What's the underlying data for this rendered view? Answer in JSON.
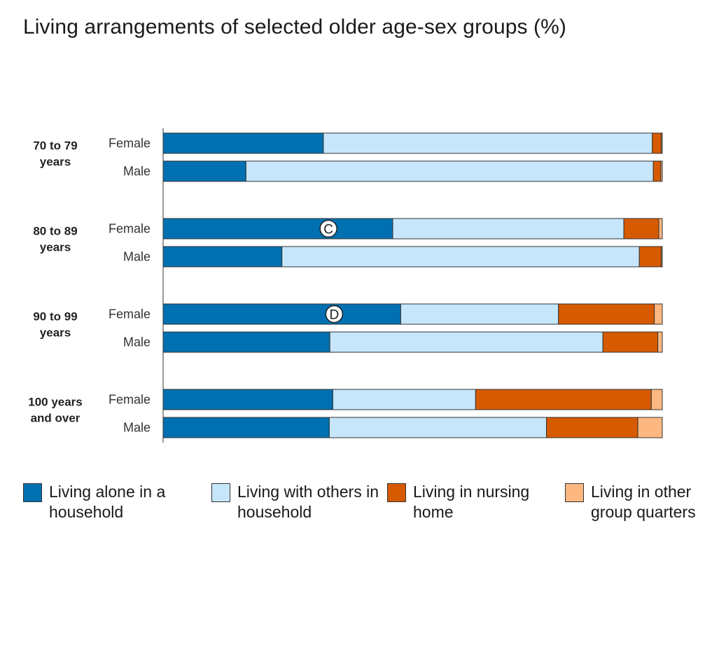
{
  "title": "Living arrangements of selected older age-sex groups (%)",
  "colors": {
    "living_alone": "#0070b0",
    "living_with_others": "#c6e6fb",
    "nursing_home": "#d65a00",
    "other_group_quarters": "#fdb882"
  },
  "legend": [
    {
      "label": "Living alone in a household",
      "color_key": "living_alone"
    },
    {
      "label": "Living with others in household",
      "color_key": "living_with_others"
    },
    {
      "label": "Living in nursing home",
      "color_key": "nursing_home"
    },
    {
      "label": "Living in other group quarters",
      "color_key": "other_group_quarters"
    }
  ],
  "chart_data": {
    "type": "bar",
    "orientation": "horizontal",
    "stacked": true,
    "title": "Living arrangements of selected older age-sex groups (%)",
    "xlim": [
      0,
      100
    ],
    "grid": false,
    "legend_position": "bottom",
    "groups": [
      {
        "label": "70 to 79 years",
        "bars": [
          {
            "label": "Female",
            "values": [
              32.1,
              65.9,
              1.8,
              0.2
            ]
          },
          {
            "label": "Male",
            "values": [
              16.6,
              81.6,
              1.5,
              0.3
            ]
          }
        ]
      },
      {
        "label": "80 to 89 years",
        "bars": [
          {
            "label": "Female",
            "values": [
              46.0,
              46.3,
              7.0,
              0.7
            ],
            "annotation": "C"
          },
          {
            "label": "Male",
            "values": [
              23.8,
              71.6,
              4.4,
              0.2
            ]
          }
        ]
      },
      {
        "label": "90 to 99 years",
        "bars": [
          {
            "label": "Female",
            "values": [
              47.6,
              31.6,
              19.2,
              1.6
            ],
            "annotation": "D"
          },
          {
            "label": "Male",
            "values": [
              33.4,
              54.7,
              11.0,
              0.9
            ]
          }
        ]
      },
      {
        "label": "100 years and over",
        "bars": [
          {
            "label": "Female",
            "values": [
              34.0,
              28.6,
              35.2,
              2.2
            ]
          },
          {
            "label": "Male",
            "values": [
              33.3,
              43.5,
              18.3,
              4.9
            ]
          }
        ]
      }
    ],
    "series": [
      {
        "name": "Living alone in a household",
        "color_key": "living_alone"
      },
      {
        "name": "Living with others in household",
        "color_key": "living_with_others"
      },
      {
        "name": "Living in nursing home",
        "color_key": "nursing_home"
      },
      {
        "name": "Living in other group quarters",
        "color_key": "other_group_quarters"
      }
    ]
  }
}
